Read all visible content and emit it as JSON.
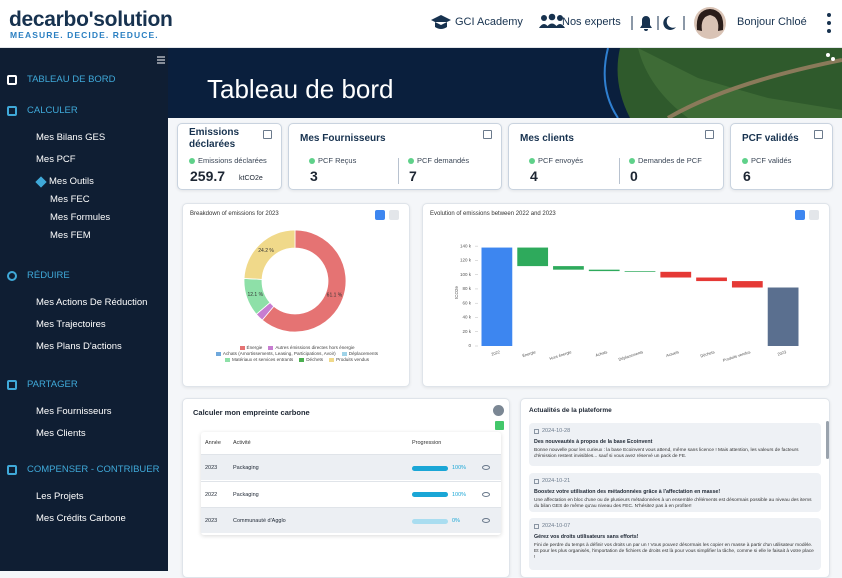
{
  "header": {
    "logo": "decarbo'solution",
    "tagline": "MEASURE. DECIDE. REDUCE.",
    "links": [
      "GCI Academy",
      "Nos experts"
    ],
    "greeting": "Bonjour Chloé"
  },
  "sidebar": {
    "sections": [
      {
        "title": "TABLEAU DE BORD"
      },
      {
        "title": "CALCULER",
        "items": [
          {
            "label": "Mes Bilans GES"
          },
          {
            "label": "Mes PCF"
          },
          {
            "label": "Mes Outils",
            "children": [
              "Mes FEC",
              "Mes Formules",
              "Mes FEM"
            ]
          }
        ]
      },
      {
        "title": "RÉDUIRE",
        "items": [
          {
            "label": "Mes Actions De Réduction"
          },
          {
            "label": "Mes Trajectoires"
          },
          {
            "label": "Mes Plans D'actions"
          }
        ]
      },
      {
        "title": "PARTAGER",
        "items": [
          {
            "label": "Mes Fournisseurs"
          },
          {
            "label": "Mes Clients"
          }
        ]
      },
      {
        "title": "COMPENSER - CONTRIBUER",
        "items": [
          {
            "label": "Les Projets"
          },
          {
            "label": "Mes Crédits Carbone"
          }
        ]
      }
    ]
  },
  "banner": {
    "title": "Tableau de bord"
  },
  "cards": [
    {
      "title": "Emissions déclarées",
      "stats": [
        {
          "label": "Emissions déclarées",
          "value": 259.7,
          "unit": "ktCO2e"
        }
      ]
    },
    {
      "title": "Mes Fournisseurs",
      "stats": [
        {
          "label": "PCF Reçus",
          "value": 3
        },
        {
          "label": "PCF demandés",
          "value": 7
        }
      ]
    },
    {
      "title": "Mes clients",
      "stats": [
        {
          "label": "PCF envoyés",
          "value": 4
        },
        {
          "label": "Demandes de PCF",
          "value": 0
        }
      ]
    },
    {
      "title": "PCF validés",
      "stats": [
        {
          "label": "PCF validés",
          "value": 6
        }
      ]
    }
  ],
  "charts": [
    {
      "type": "donut",
      "title": "Breakdown of emissions for 2023",
      "categories": [
        "Énergie",
        "Autres émissions directes hors énergie",
        "Achats (Amortissements, Leasing, Participations, Avoir)",
        "Déplacements",
        "Matériaux et services entrants",
        "Déchets",
        "Produits vendus"
      ],
      "values": [
        61.1,
        2.6,
        0,
        0,
        12.1,
        0,
        24.2
      ],
      "value_labels": [
        "61.1 %",
        null,
        null,
        null,
        "12.1 %",
        null,
        "24.2 %"
      ],
      "colors": [
        "#e57373",
        "#c77dd1",
        "#6fa8dc",
        "#9fd3e8",
        "#8ee0a8",
        "#4caf50",
        "#f0d98a"
      ]
    },
    {
      "type": "waterfall",
      "title": "Evolution of emissions between 2022 and 2023",
      "ylabel": "tCO2e",
      "categories": [
        "2022",
        "Énergie",
        "Hors énergie",
        "Achats",
        "Déplacements",
        "Actuels",
        "Déchets",
        "Produits vendus",
        "2023"
      ],
      "measure": [
        "absolute",
        "relative",
        "relative",
        "relative",
        "relative",
        "relative",
        "relative",
        "relative",
        "total"
      ],
      "values": [
        138,
        -26,
        -5,
        -2,
        -1,
        -8,
        -5,
        -9,
        82
      ],
      "colors": [
        "#3d86f0",
        "#2eaa5c",
        "#2eaa5c",
        "#2eaa5c",
        "#2eaa5c",
        "#e53935",
        "#e53935",
        "#e53935",
        "#5a6f8f"
      ],
      "ylim": [
        0,
        150
      ],
      "yticks": [
        {
          "value": 0,
          "label": "0"
        },
        {
          "value": 20,
          "label": "20 k"
        },
        {
          "value": 40,
          "label": "40 k"
        },
        {
          "value": 60,
          "label": "60 k"
        },
        {
          "value": 80,
          "label": "80 k"
        },
        {
          "value": 100,
          "label": "100 k"
        },
        {
          "value": 120,
          "label": "120 k"
        },
        {
          "value": 140,
          "label": "140 k"
        }
      ],
      "grid": false
    }
  ],
  "calculator": {
    "title": "Calculer mon empreinte carbone",
    "columns": [
      "Année",
      "Activité",
      "Progression"
    ],
    "rows": [
      {
        "year": 2023,
        "activity": "Packaging",
        "progress": 100,
        "progress_label": "100%"
      },
      {
        "year": 2022,
        "activity": "Packaging",
        "progress": 100,
        "progress_label": "100%"
      },
      {
        "year": 2023,
        "activity": "Communauté d'Agglo",
        "progress": 0,
        "progress_label": "0%"
      }
    ]
  },
  "news": {
    "title": "Actualités de la plateforme",
    "items": [
      {
        "date": "2024-10-28",
        "title": "Des nouveautés à propos de la base Ecoinvent",
        "body": "Bonne nouvelle pour les curieux : la base Ecoinvent vous attend, même sans licence ! Mais attention, les valeurs de facteurs d'émission restent invisibles... sauf si vous avez réservé un pack de FE."
      },
      {
        "date": "2024-10-21",
        "title": "Boostez votre utilisation des métadonnées grâce à l'affectation en masse!",
        "body": "Une affectation en bloc d'une ou de plusieurs métadonnées à un ensemble d'éléments est désormais possible au niveau des items du bilan GES de même qu'au niveau des FEC. N'hésitez pas à en profiter!"
      },
      {
        "date": "2024-10-07",
        "title": "Gérez vos droits utilisateurs sans efforts!",
        "body": "Fini de perdre du temps à définir vos droits un par un ! Vous pouvez désormais les copier en masse à partir d'un utilisateur modèle. Et pour les plus organisés, l'importation de fichiers de droits est là pour vous simplifier la tâche, comme si elle le faisait à votre place !"
      }
    ]
  }
}
